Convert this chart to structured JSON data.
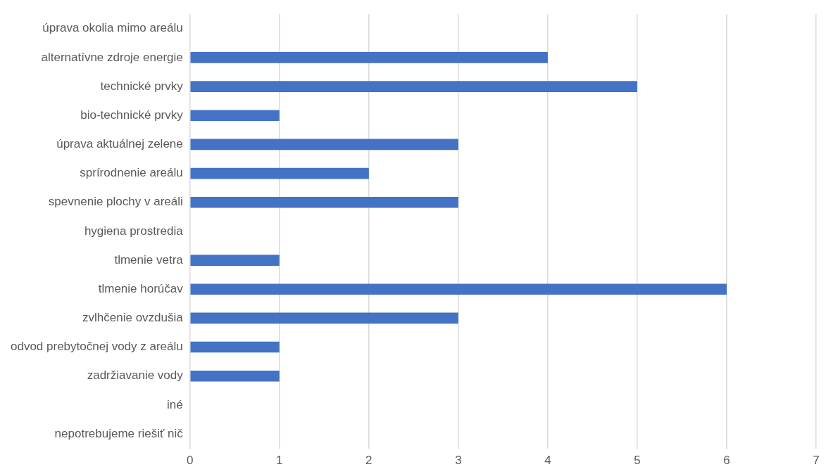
{
  "chart_data": {
    "type": "bar",
    "orientation": "horizontal",
    "categories": [
      "úprava okolia mimo areálu",
      "alternatívne zdroje energie",
      "technické prvky",
      "bio-technické prvky",
      "úprava aktuálnej zelene",
      "sprírodnenie areálu",
      "spevnenie plochy v areáli",
      "hygiena prostredia",
      "tlmenie vetra",
      "tlmenie horúčav",
      "zvlhčenie ovzdušia",
      "odvod prebytočnej vody z areálu",
      "zadržiavanie vody",
      "iné",
      "nepotrebujeme riešiť nič"
    ],
    "values": [
      0,
      4,
      5,
      1,
      3,
      2,
      3,
      0,
      1,
      6,
      3,
      1,
      1,
      0,
      0
    ],
    "color": "#4472c4",
    "xlim": [
      0,
      7
    ],
    "xticks": [
      0,
      1,
      2,
      3,
      4,
      5,
      6,
      7
    ],
    "grid": "x",
    "legend": false
  }
}
